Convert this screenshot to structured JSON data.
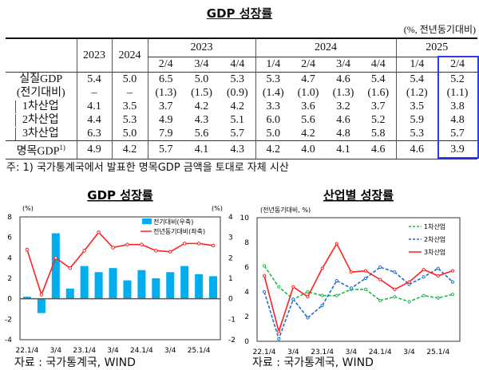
{
  "table": {
    "title": "GDP 성장률",
    "unit": "(%, 전년동기대비)",
    "years": [
      "2023",
      "2024"
    ],
    "quarter_groups": [
      {
        "year": "2023",
        "quarters": [
          "2/4",
          "3/4",
          "4/4"
        ]
      },
      {
        "year": "2024",
        "quarters": [
          "1/4",
          "2/4",
          "3/4",
          "4/4"
        ]
      },
      {
        "year": "2025",
        "quarters": [
          "1/4",
          "2/4"
        ]
      }
    ],
    "rows": [
      {
        "label": "실질GDP",
        "values": [
          "5.4",
          "5.0",
          "6.5",
          "5.0",
          "5.3",
          "5.3",
          "4.7",
          "4.6",
          "5.4",
          "5.4",
          "5.2"
        ]
      },
      {
        "label": "(전기대비)",
        "values": [
          "–",
          "–",
          "(1.3)",
          "(1.5)",
          "(0.9)",
          "(1.4)",
          "(1.0)",
          "(1.3)",
          "(1.6)",
          "(1.2)",
          "(1.1)"
        ]
      },
      {
        "label": "1차산업",
        "values": [
          "4.1",
          "3.5",
          "3.7",
          "4.2",
          "4.2",
          "3.3",
          "3.6",
          "3.2",
          "3.7",
          "3.5",
          "3.8"
        ]
      },
      {
        "label": "2차산업",
        "values": [
          "4.4",
          "5.3",
          "4.9",
          "4.3",
          "5.1",
          "6.0",
          "5.6",
          "4.6",
          "5.2",
          "5.9",
          "4.8"
        ]
      },
      {
        "label": "3차산업",
        "values": [
          "6.3",
          "5.0",
          "7.9",
          "5.6",
          "5.7",
          "5.0",
          "4.2",
          "4.8",
          "5.8",
          "5.3",
          "5.7"
        ]
      },
      {
        "label": "명목GDP",
        "sup": "1)",
        "values": [
          "4.9",
          "4.2",
          "5.7",
          "4.1",
          "4.3",
          "4.2",
          "4.0",
          "4.1",
          "4.6",
          "4.6",
          "3.9"
        ]
      }
    ],
    "note": "주: 1) 국가통계국에서 발표한 명목GDP 금액을 토대로 자체 시산",
    "highlight_color": "#2a3cf0"
  },
  "chart_data": [
    {
      "type": "bar+line",
      "title": "GDP 성장률",
      "left_unit": "(%)",
      "right_unit": "(%)",
      "categories": [
        "22.1/4",
        "22.2/4",
        "22.3/4",
        "22.4/4",
        "23.1/4",
        "23.2/4",
        "23.3/4",
        "23.4/4",
        "24.1/4",
        "24.2/4",
        "24.3/4",
        "24.4/4",
        "25.1/4",
        "25.2/4"
      ],
      "tick_labels": [
        "22.1/4",
        "",
        "3/4",
        "",
        "23.1/4",
        "",
        "3/4",
        "",
        "24.1/4",
        "",
        "3/4",
        "",
        "25.1/4",
        ""
      ],
      "ylim_left": [
        -4,
        8
      ],
      "yticks_left": [
        "-4",
        "-2",
        "0",
        "2",
        "4",
        "6",
        "8"
      ],
      "ylim_right": [
        -2,
        4
      ],
      "yticks_right": [
        "-2",
        "-1",
        "0",
        "1",
        "2",
        "3",
        "4"
      ],
      "series": [
        {
          "name": "전기대비(우축)",
          "axis": "right",
          "kind": "bar",
          "color": "#00aeef",
          "values": [
            0.1,
            -0.7,
            3.2,
            0.5,
            1.6,
            1.3,
            1.5,
            0.9,
            1.4,
            1.0,
            1.3,
            1.6,
            1.2,
            1.1
          ]
        },
        {
          "name": "전년동기대비(좌축)",
          "axis": "left",
          "kind": "line",
          "color": "#ff2020",
          "values": [
            4.8,
            0.4,
            4.0,
            3.0,
            4.7,
            6.5,
            5.0,
            5.3,
            5.3,
            4.7,
            4.6,
            5.4,
            5.4,
            5.2
          ]
        }
      ],
      "legend": "top-right",
      "source": "자료 : 국가통계국, WIND"
    },
    {
      "type": "line",
      "title": "산업별 성장률",
      "ylabel": "(전년동기대비, %)",
      "categories": [
        "22.1/4",
        "22.2/4",
        "22.3/4",
        "22.4/4",
        "23.1/4",
        "23.2/4",
        "23.3/4",
        "23.4/4",
        "24.1/4",
        "24.2/4",
        "24.3/4",
        "24.4/4",
        "25.1/4",
        "25.2/4"
      ],
      "tick_labels": [
        "22.1/4",
        "",
        "3/4",
        "",
        "23.1/4",
        "",
        "3/4",
        "",
        "24.1/4",
        "",
        "3/4",
        "",
        "25.1/4",
        ""
      ],
      "ylim": [
        0,
        10
      ],
      "yticks": [
        "0",
        "2",
        "4",
        "6",
        "8",
        "10"
      ],
      "series": [
        {
          "name": "1차산업",
          "color": "#1fb84a",
          "dash": true,
          "values": [
            6.1,
            4.4,
            3.4,
            4.0,
            3.7,
            3.7,
            4.2,
            4.2,
            3.3,
            3.6,
            3.2,
            3.7,
            3.5,
            3.8
          ]
        },
        {
          "name": "2차산업",
          "color": "#1f6fd0",
          "dash": true,
          "values": [
            4.0,
            0.2,
            3.4,
            1.9,
            2.9,
            4.9,
            4.3,
            5.1,
            6.0,
            5.6,
            4.6,
            5.2,
            5.9,
            4.8
          ]
        },
        {
          "name": "3차산업",
          "color": "#ff2020",
          "dash": false,
          "values": [
            5.3,
            0.8,
            4.4,
            3.6,
            5.9,
            7.9,
            5.6,
            5.7,
            5.0,
            4.2,
            4.8,
            5.8,
            5.3,
            5.7
          ]
        }
      ],
      "legend": "top-right",
      "source": "자료 : 국가통계국, WIND"
    }
  ]
}
